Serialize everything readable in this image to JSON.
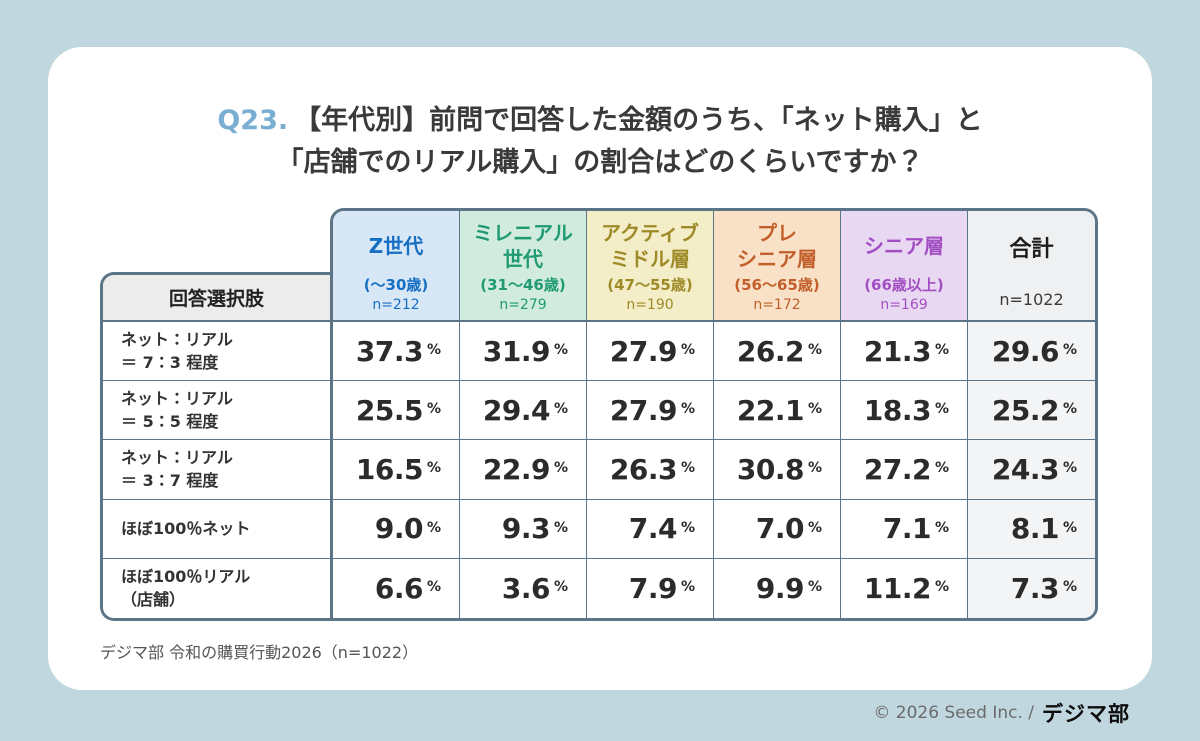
{
  "title": {
    "prefix": "Q23.",
    "line1": "【年代別】前問で回答した金額のうち、「ネット購入」と",
    "line2": "「店舗でのリアル購入」の割合はどのくらいですか？",
    "prefix_color": "#79aed2"
  },
  "table": {
    "row_header_label": "回答選択肢",
    "unit": "%",
    "border_color": "#5b7486",
    "columns": [
      {
        "name_line1": "Z世代",
        "name_line2": "",
        "age": "(～30歳)",
        "n": "n=212",
        "bg": "#d7e7f6",
        "color": "#176fc4"
      },
      {
        "name_line1": "ミレニアル",
        "name_line2": "世代",
        "age": "(31～46歳)",
        "n": "n=279",
        "bg": "#d2ebdf",
        "color": "#1f9a72"
      },
      {
        "name_line1": "アクティブ",
        "name_line2": "ミドル層",
        "age": "(47～55歳)",
        "n": "n=190",
        "bg": "#f3edc8",
        "color": "#9e8b28"
      },
      {
        "name_line1": "プレ",
        "name_line2": "シニア層",
        "age": "(56～65歳)",
        "n": "n=172",
        "bg": "#f8e1c7",
        "color": "#c25f2b"
      },
      {
        "name_line1": "シニア層",
        "name_line2": "",
        "age": "(66歳以上)",
        "n": "n=169",
        "bg": "#e9d8f2",
        "color": "#a34fc4"
      },
      {
        "name_line1": "合計",
        "name_line2": "",
        "age": "",
        "n": "n=1022",
        "bg": "#eef0f1",
        "color": "#1d1d1d"
      }
    ],
    "rows": [
      {
        "label_line1": "ネット：リアル",
        "label_line2": "＝ 7：3 程度",
        "values": [
          "37.3",
          "31.9",
          "27.9",
          "26.2",
          "21.3",
          "29.6"
        ]
      },
      {
        "label_line1": "ネット：リアル",
        "label_line2": "＝ 5：5 程度",
        "values": [
          "25.5",
          "29.4",
          "27.9",
          "22.1",
          "18.3",
          "25.2"
        ]
      },
      {
        "label_line1": "ネット：リアル",
        "label_line2": "＝ 3：7 程度",
        "values": [
          "16.5",
          "22.9",
          "26.3",
          "30.8",
          "27.2",
          "24.3"
        ]
      },
      {
        "label_line1": "ほぼ100％ネット",
        "label_line2": "",
        "values": [
          "9.0",
          "9.3",
          "7.4",
          "7.0",
          "7.1",
          "8.1"
        ]
      },
      {
        "label_line1": "ほぼ100％リアル",
        "label_line2": "（店舗）",
        "values": [
          "6.6",
          "3.6",
          "7.9",
          "9.9",
          "11.2",
          "7.3"
        ]
      }
    ]
  },
  "source_note": "デジマ部 令和の購買行動2026（n=1022）",
  "footer": {
    "copyright": "© 2026 Seed Inc. /",
    "logo": "デジマ部"
  },
  "chart_data": {
    "type": "table",
    "title": "Q23.【年代別】前問で回答した金額のうち、「ネット購入」と「店舗でのリアル購入」の割合はどのくらいですか？",
    "unit": "%",
    "categories": [
      "Z世代（～30歳）",
      "ミレニアル世代（31～46歳）",
      "アクティブミドル層（47～55歳）",
      "プレシニア層（56～65歳）",
      "シニア層（66歳以上）",
      "合計"
    ],
    "sample_sizes": [
      212,
      279,
      190,
      172,
      169,
      1022
    ],
    "row_options": [
      "ネット：リアル＝7：3程度",
      "ネット：リアル＝5：5程度",
      "ネット：リアル＝3：7程度",
      "ほぼ100％ネット",
      "ほぼ100％リアル（店舗）"
    ],
    "series": [
      {
        "name": "Z世代",
        "values": [
          37.3,
          25.5,
          16.5,
          9.0,
          6.6
        ]
      },
      {
        "name": "ミレニアル世代",
        "values": [
          31.9,
          29.4,
          22.9,
          9.3,
          3.6
        ]
      },
      {
        "name": "アクティブミドル層",
        "values": [
          27.9,
          27.9,
          26.3,
          7.4,
          7.9
        ]
      },
      {
        "name": "プレシニア層",
        "values": [
          26.2,
          22.1,
          30.8,
          7.0,
          9.9
        ]
      },
      {
        "name": "シニア層",
        "values": [
          21.3,
          18.3,
          27.2,
          7.1,
          11.2
        ]
      },
      {
        "name": "合計",
        "values": [
          29.6,
          25.2,
          24.3,
          8.1,
          7.3
        ]
      }
    ],
    "source": "デジマ部 令和の購買行動2026（n=1022）"
  }
}
